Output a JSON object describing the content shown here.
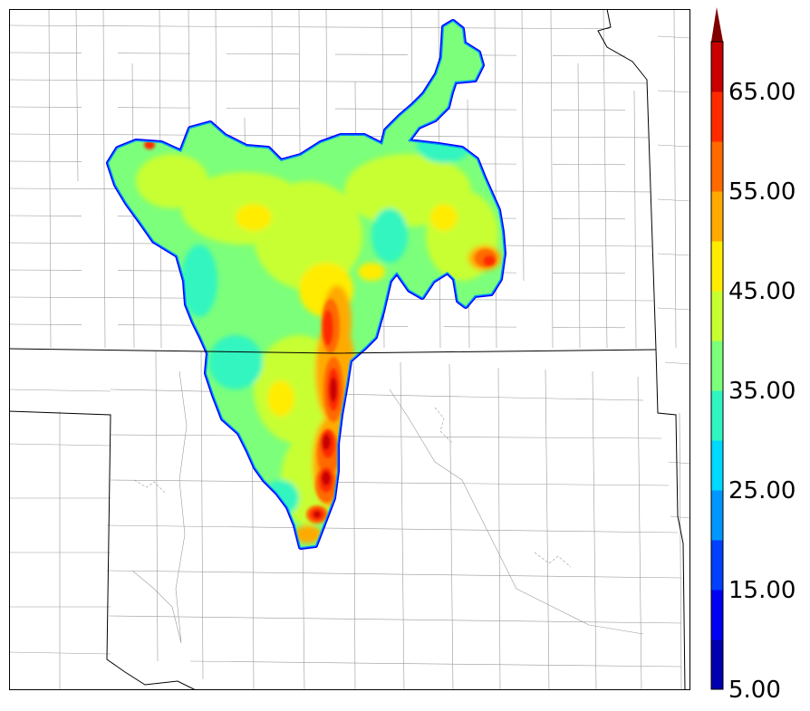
{
  "colorbar": {
    "extend": "max",
    "levels": [
      5,
      10,
      15,
      20,
      25,
      30,
      35,
      40,
      45,
      50,
      55,
      60,
      65,
      70
    ],
    "colors": [
      "#0000b0",
      "#0000f5",
      "#0040ff",
      "#0096ff",
      "#00d8ff",
      "#30f5c0",
      "#7cff7a",
      "#c8ff30",
      "#ffec00",
      "#ffaa00",
      "#ff6a00",
      "#ff2a00",
      "#c80000"
    ],
    "extend_color": "#800000",
    "tick_values": [
      5,
      15,
      25,
      35,
      45,
      55,
      65
    ],
    "tick_labels": [
      "5.00",
      "15.00",
      "25.00",
      "35.00",
      "45.00",
      "55.00",
      "65.00"
    ]
  },
  "map": {
    "state_line_color": "#000000",
    "county_line_color": "#9a9a9a"
  }
}
